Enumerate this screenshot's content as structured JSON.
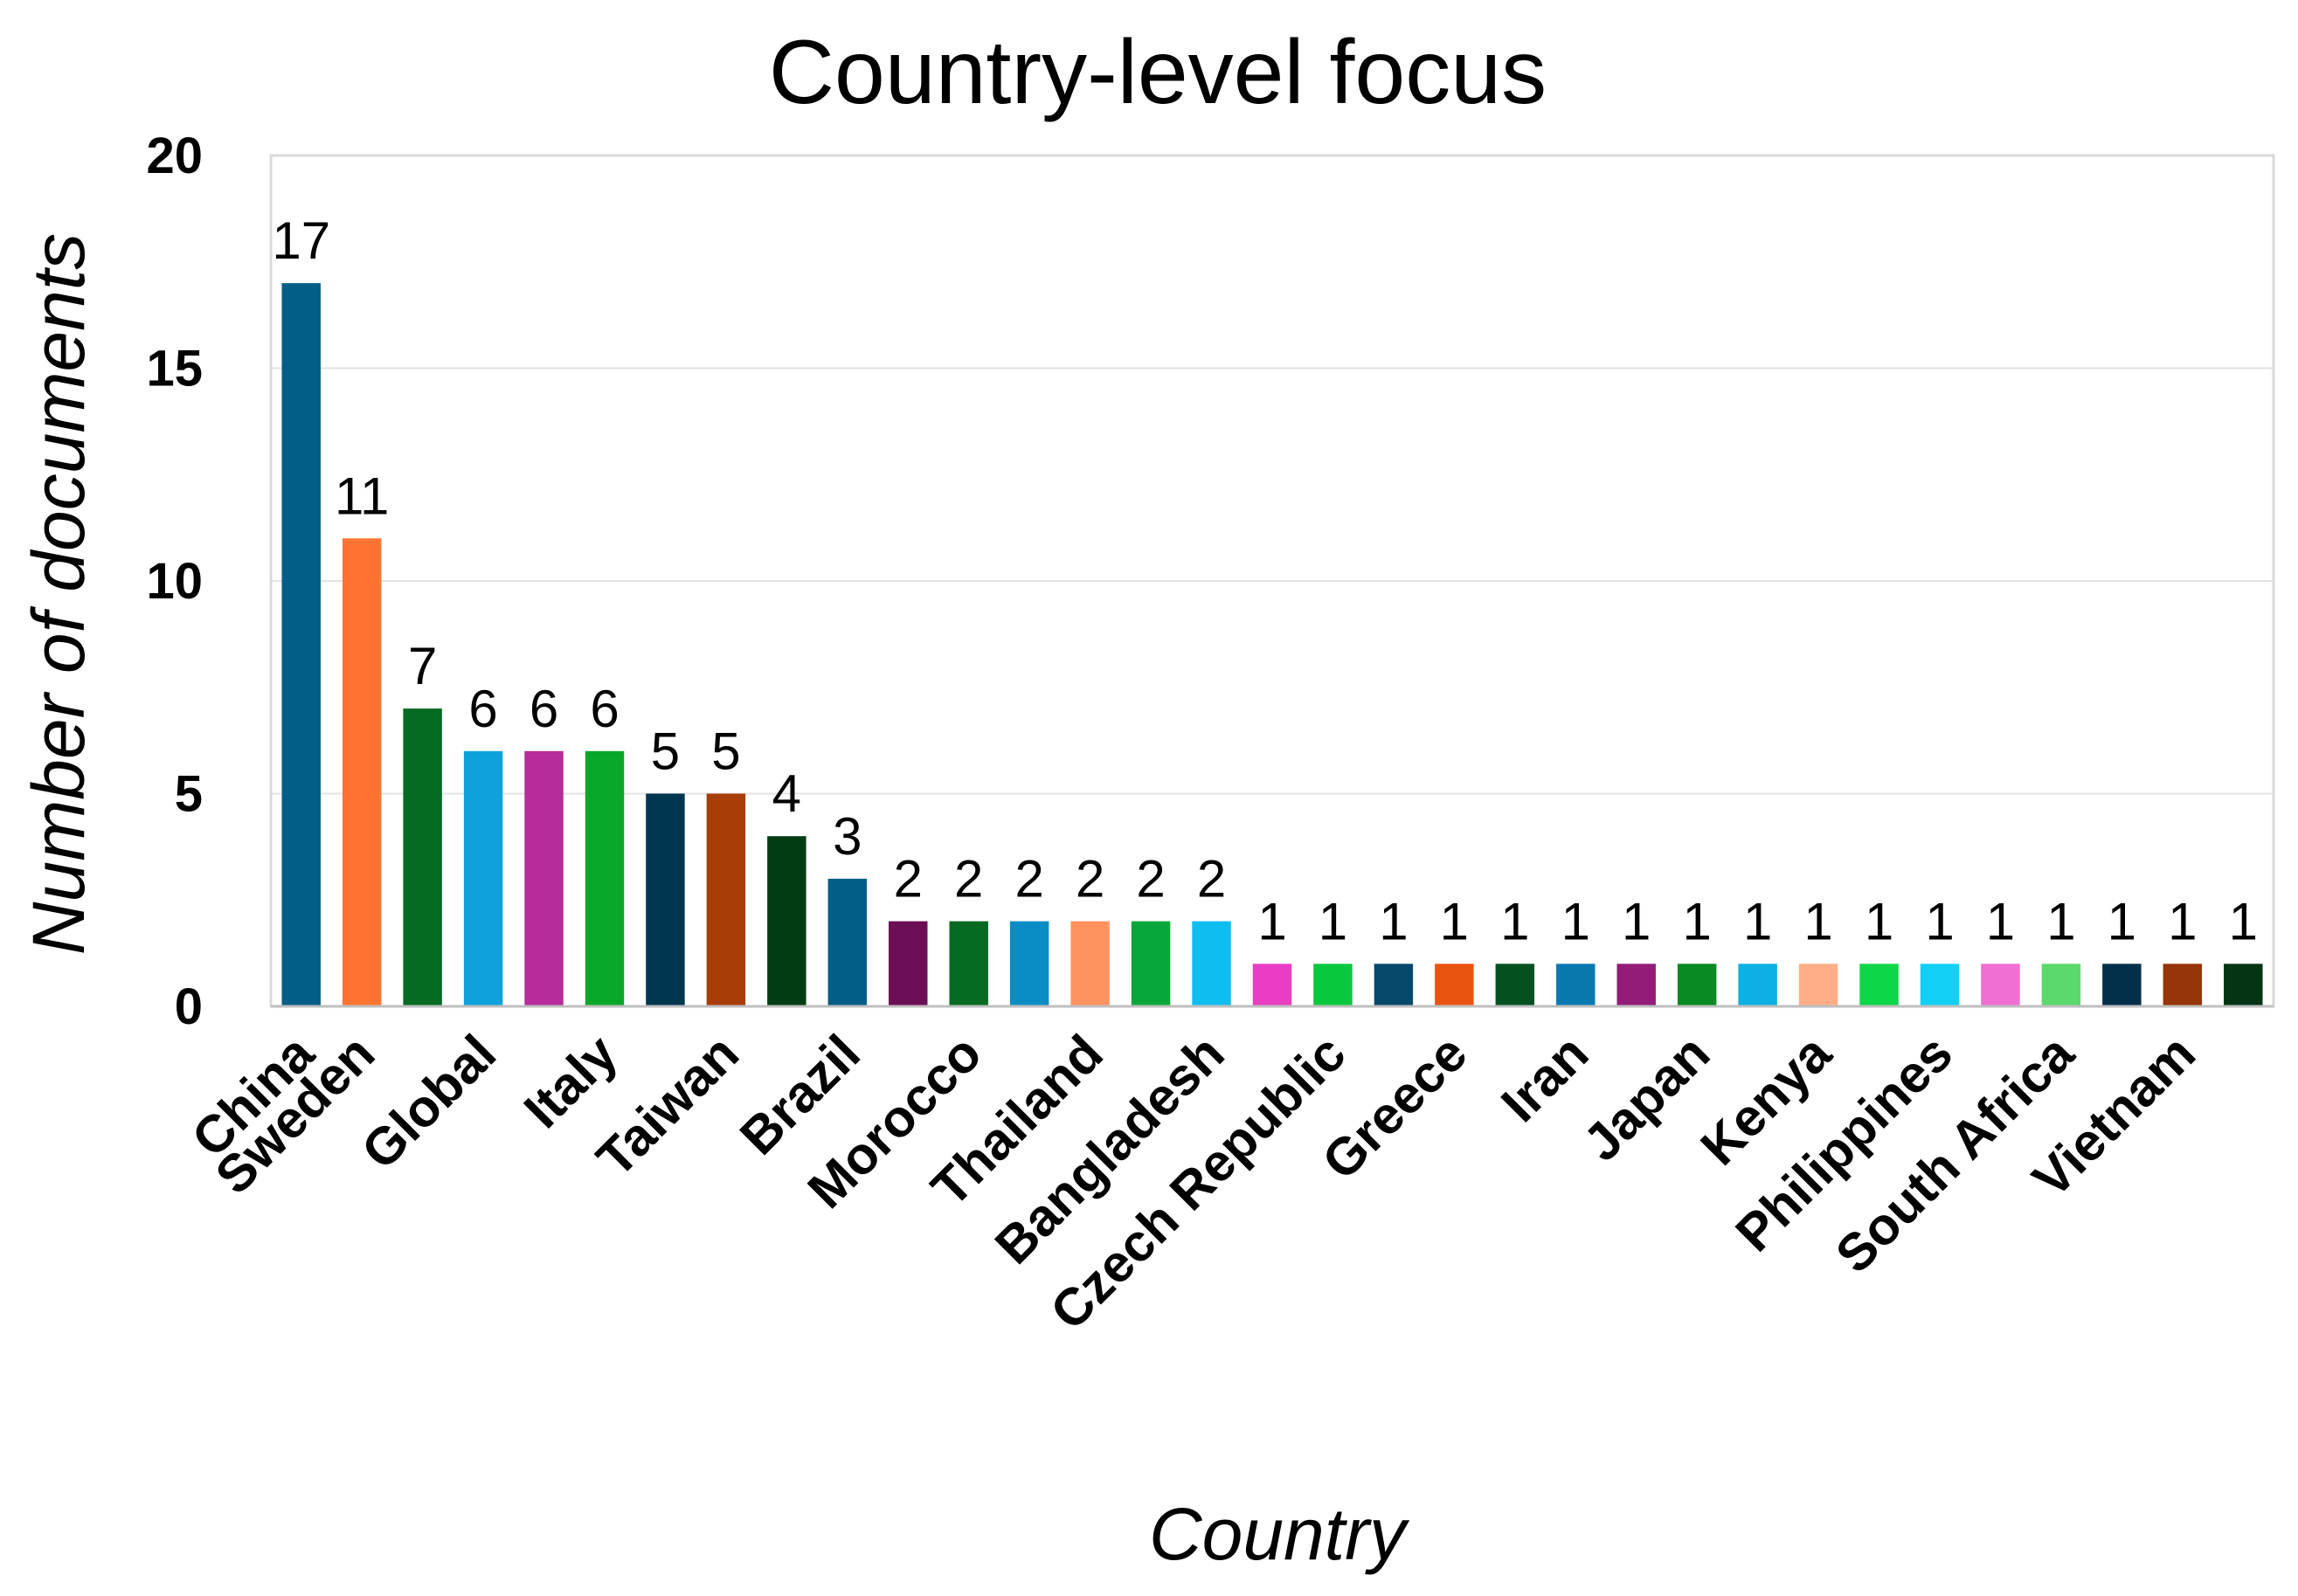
{
  "chart_data": {
    "type": "bar",
    "title": "Country-level focus",
    "xlabel": "Country",
    "ylabel": "Number of documents",
    "ylim": [
      0,
      20
    ],
    "yticks": [
      "0",
      "5",
      "10",
      "15",
      "20"
    ],
    "grid": true,
    "legend": "none",
    "bars": [
      {
        "category": "China",
        "value": 17,
        "color": "#025E87",
        "show_label": true
      },
      {
        "category": "Sweden",
        "value": 11,
        "color": "#FF7332",
        "show_label": true
      },
      {
        "category": "",
        "value": 7,
        "color": "#066B22",
        "show_label": false
      },
      {
        "category": "Global",
        "value": 6,
        "color": "#0DA2DB",
        "show_label": true
      },
      {
        "category": "",
        "value": 6,
        "color": "#B72B9B",
        "show_label": false
      },
      {
        "category": "Italy",
        "value": 6,
        "color": "#07A829",
        "show_label": true
      },
      {
        "category": "",
        "value": 5,
        "color": "#003650",
        "show_label": false
      },
      {
        "category": "Taiwan",
        "value": 5,
        "color": "#A83D08",
        "show_label": true
      },
      {
        "category": "",
        "value": 4,
        "color": "#023C13",
        "show_label": false
      },
      {
        "category": "Brazil",
        "value": 3,
        "color": "#025E87",
        "show_label": true
      },
      {
        "category": "",
        "value": 2,
        "color": "#6C0E55",
        "show_label": false
      },
      {
        "category": "Morocco",
        "value": 2,
        "color": "#066B22",
        "show_label": true
      },
      {
        "category": "",
        "value": 2,
        "color": "#0A8CC4",
        "show_label": false
      },
      {
        "category": "Thailand",
        "value": 2,
        "color": "#FF9360",
        "show_label": true
      },
      {
        "category": "",
        "value": 2,
        "color": "#08A73A",
        "show_label": false
      },
      {
        "category": "Bangladesh",
        "value": 2,
        "color": "#10BDF0",
        "show_label": true
      },
      {
        "category": "",
        "value": 1,
        "color": "#E93DC4",
        "show_label": false
      },
      {
        "category": "Czech Republic",
        "value": 1,
        "color": "#08C93E",
        "show_label": true
      },
      {
        "category": "",
        "value": 1,
        "color": "#06496B",
        "show_label": false
      },
      {
        "category": "Greece",
        "value": 1,
        "color": "#EA5411",
        "show_label": true
      },
      {
        "category": "",
        "value": 1,
        "color": "#045120",
        "show_label": false
      },
      {
        "category": "Iran",
        "value": 1,
        "color": "#0879AF",
        "show_label": true
      },
      {
        "category": "",
        "value": 1,
        "color": "#921C78",
        "show_label": false
      },
      {
        "category": "Japan",
        "value": 1,
        "color": "#078B22",
        "show_label": true
      },
      {
        "category": "",
        "value": 1,
        "color": "#0CB0E3",
        "show_label": false
      },
      {
        "category": "Kenya",
        "value": 1,
        "color": "#FFAE88",
        "show_label": true
      },
      {
        "category": "",
        "value": 1,
        "color": "#0DD649",
        "show_label": false
      },
      {
        "category": "Philippines",
        "value": 1,
        "color": "#12D0F5",
        "show_label": true
      },
      {
        "category": "",
        "value": 1,
        "color": "#F16ED2",
        "show_label": false
      },
      {
        "category": "South Africa",
        "value": 1,
        "color": "#5CD96D",
        "show_label": true
      },
      {
        "category": "",
        "value": 1,
        "color": "#02304A",
        "show_label": false
      },
      {
        "category": "Vietnam",
        "value": 1,
        "color": "#953509",
        "show_label": true
      },
      {
        "category": "",
        "value": 1,
        "color": "#053415",
        "show_label": false
      }
    ]
  }
}
